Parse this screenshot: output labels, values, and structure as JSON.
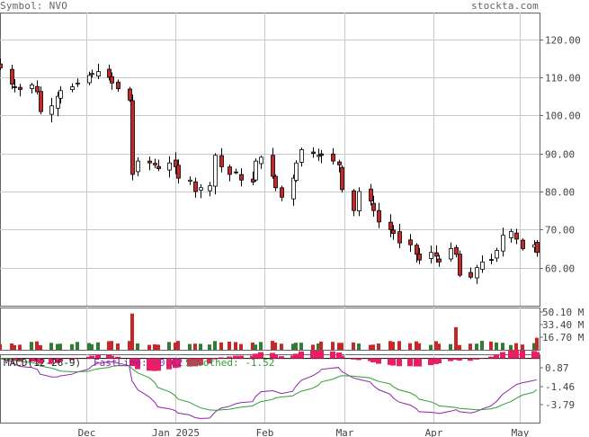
{
  "header": {
    "symbol_label": "Symbol: NVO",
    "brand": "stockta.com"
  },
  "colors": {
    "up": "#2e7d32",
    "down": "#c62828",
    "grid": "#c8c8c8",
    "axis": "#666666",
    "macd_hist": "#e91e63",
    "fast": "#8e24aa",
    "smooth": "#2ea02e",
    "label": "#444444"
  },
  "chart_data": [
    {
      "type": "candlestick",
      "title": "",
      "ylabel": "",
      "y_ticks": [
        "120.00",
        "110.00",
        "100.00",
        "90.00",
        "80.00",
        "70.00",
        "60.00"
      ],
      "y_range": [
        50,
        127
      ],
      "x_labels": [
        "Dec",
        "Jan 2025",
        "Feb",
        "Mar",
        "Apr",
        "May"
      ],
      "x_range": [
        "2024-11-01",
        "2025-05-08"
      ],
      "close": [
        112.5,
        108.2,
        107.5,
        106.8,
        108.0,
        106.2,
        101.0,
        102.5,
        105.0,
        106.5,
        107.5,
        108.5,
        110.5,
        111.0,
        111.5,
        110.0,
        108.5,
        107.0,
        104.0,
        84.5,
        88.0,
        87.5,
        87.0,
        86.0,
        87.5,
        86.5,
        83.5,
        83.0,
        80.0,
        81.0,
        81.5,
        89.5,
        86.5,
        84.5,
        85.0,
        83.0,
        82.5,
        88.0,
        89.0,
        84.0,
        81.0,
        78.5,
        83.5,
        87.5,
        91.0,
        90.0,
        89.5,
        89.5,
        88.0,
        87.0,
        80.5,
        75.0,
        80.0,
        77.5,
        75.0,
        72.0,
        70.0,
        69.0,
        66.5,
        66.0,
        63.5,
        62.0,
        64.0,
        63.0,
        61.5,
        65.0,
        63.5,
        58.0,
        57.5,
        60.0,
        61.5,
        62.0,
        64.5,
        68.5,
        69.5,
        67.5,
        65.0,
        66.0,
        64.0
      ],
      "volume_ticks": [
        "50.10 M",
        "33.40 M",
        "16.70 M"
      ],
      "volume_range": [
        0,
        56
      ]
    },
    {
      "type": "line",
      "title": "MACD(12-26-9)",
      "legend": [
        {
          "label": "FastLine: -0.62"
        },
        {
          "label": "Smoothed: -1.52"
        }
      ],
      "y_ticks": [
        "0.87",
        "-1.46",
        "-3.79"
      ]
    }
  ]
}
